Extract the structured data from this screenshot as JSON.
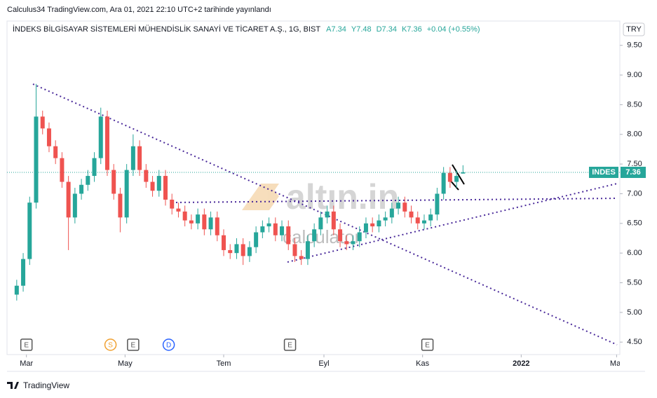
{
  "chart_data": {
    "type": "candlestick",
    "published": "Calculus34 TradingView.com, Ara 01, 2021 22:10 UTC+2 tarihinde yayınlandı",
    "title": "İNDEKS BİLGİSAYAR SİSTEMLERİ MÜHENDİSLİK SANAYİ VE TİCARET A.Ş., 1G, BIST",
    "ohlc_legend": [
      "A7.34",
      "Y7.48",
      "D7.34",
      "K7.36",
      "+0.04 (+0.55%)"
    ],
    "currency": "TRY",
    "symbol": "INDES",
    "watermark": [
      "altın.in",
      "calculator"
    ],
    "footer": "TradingView",
    "up_color": "#26a69a",
    "down_color": "#ef5350",
    "xlim": [
      -12,
      367
    ],
    "ylim": [
      4.29,
      9.91
    ],
    "xticks": [
      {
        "value": 0,
        "label": "Mar"
      },
      {
        "value": 61,
        "label": "May"
      },
      {
        "value": 122,
        "label": "Tem"
      },
      {
        "value": 184,
        "label": "Eyl"
      },
      {
        "value": 245,
        "label": "Kas"
      },
      {
        "value": 306,
        "label": "2022"
      },
      {
        "value": 365,
        "label": "Mar"
      }
    ],
    "yticks": [
      {
        "value": 4.5,
        "label": "4.50"
      },
      {
        "value": 5,
        "label": "5.00"
      },
      {
        "value": 5.5,
        "label": "5.50"
      },
      {
        "value": 6,
        "label": "6.00"
      },
      {
        "value": 6.5,
        "label": "6.50"
      },
      {
        "value": 7,
        "label": "7.00"
      },
      {
        "value": 7.5,
        "label": "7.50"
      },
      {
        "value": 8,
        "label": "8.00"
      },
      {
        "value": 8.5,
        "label": "8.50"
      },
      {
        "value": 9,
        "label": "9.00"
      },
      {
        "value": 9.5,
        "label": "9.50"
      }
    ],
    "events": [
      {
        "x": 0,
        "label": "E",
        "color": "#555555"
      },
      {
        "x": 52,
        "label": "S",
        "color": "#f0a030"
      },
      {
        "x": 66,
        "label": "E",
        "color": "#555555"
      },
      {
        "x": 88,
        "label": "D",
        "color": "#2962ff"
      },
      {
        "x": 163,
        "label": "E",
        "color": "#555555"
      },
      {
        "x": 248,
        "label": "E",
        "color": "#555555"
      }
    ],
    "x": [
      -6,
      -2,
      2,
      6,
      10,
      14,
      18,
      22,
      26,
      30,
      34,
      38,
      42,
      46,
      50,
      54,
      58,
      62,
      66,
      70,
      74,
      78,
      82,
      86,
      90,
      94,
      98,
      102,
      106,
      110,
      114,
      118,
      122,
      126,
      130,
      134,
      138,
      142,
      146,
      150,
      154,
      158,
      162,
      166,
      170,
      174,
      178,
      182,
      186,
      190,
      194,
      198,
      202,
      206,
      210,
      214,
      218,
      222,
      226,
      230,
      234,
      238,
      242,
      246,
      250,
      254,
      258,
      262,
      266,
      270
    ],
    "open": [
      5.3,
      5.45,
      5.9,
      6.85,
      8.3,
      8.1,
      7.8,
      7.6,
      7.2,
      6.6,
      7.0,
      7.15,
      7.3,
      7.6,
      8.3,
      7.4,
      7.0,
      6.6,
      7.4,
      7.8,
      7.4,
      7.2,
      7.05,
      7.3,
      6.9,
      6.75,
      6.7,
      6.55,
      6.5,
      6.65,
      6.4,
      6.6,
      6.3,
      6.05,
      6.0,
      6.15,
      5.95,
      6.1,
      6.35,
      6.45,
      6.5,
      6.3,
      6.45,
      6.15,
      5.95,
      5.9,
      6.2,
      6.4,
      6.6,
      6.7,
      6.4,
      6.2,
      6.15,
      6.2,
      6.35,
      6.5,
      6.45,
      6.55,
      6.6,
      6.75,
      6.85,
      6.7,
      6.6,
      6.5,
      6.55,
      6.65,
      7.0,
      7.35,
      7.2,
      7.34
    ],
    "high": [
      5.55,
      6.0,
      6.95,
      8.85,
      8.4,
      8.2,
      7.9,
      7.7,
      7.3,
      7.1,
      7.25,
      7.4,
      7.7,
      8.45,
      8.4,
      7.5,
      7.1,
      7.5,
      8.0,
      7.9,
      7.5,
      7.3,
      7.4,
      7.4,
      7.0,
      6.85,
      6.8,
      6.65,
      6.75,
      6.75,
      6.7,
      6.7,
      6.4,
      6.15,
      6.25,
      6.25,
      6.2,
      6.45,
      6.55,
      6.6,
      6.6,
      6.55,
      6.55,
      6.25,
      6.05,
      6.3,
      6.5,
      6.7,
      6.8,
      6.8,
      6.5,
      6.3,
      6.3,
      6.45,
      6.6,
      6.6,
      6.65,
      6.7,
      6.85,
      6.95,
      6.95,
      6.8,
      6.7,
      6.65,
      6.75,
      7.1,
      7.45,
      7.45,
      7.4,
      7.48
    ],
    "low": [
      5.2,
      5.35,
      5.8,
      6.75,
      8.0,
      7.7,
      7.5,
      7.1,
      6.05,
      6.5,
      6.9,
      7.05,
      7.2,
      7.5,
      7.3,
      6.9,
      6.35,
      6.5,
      7.3,
      7.3,
      7.1,
      6.95,
      6.95,
      6.8,
      6.65,
      6.6,
      6.45,
      6.4,
      6.4,
      6.3,
      6.3,
      6.2,
      5.95,
      5.9,
      5.9,
      5.8,
      5.85,
      6.0,
      6.25,
      6.35,
      6.2,
      6.2,
      6.05,
      5.85,
      5.8,
      5.8,
      6.1,
      6.3,
      6.5,
      6.3,
      6.1,
      6.05,
      6.05,
      6.1,
      6.25,
      6.35,
      6.35,
      6.45,
      6.5,
      6.65,
      6.6,
      6.5,
      6.4,
      6.4,
      6.45,
      6.55,
      6.9,
      7.1,
      7.1,
      7.34
    ],
    "close": [
      5.45,
      5.9,
      6.85,
      8.3,
      8.1,
      7.8,
      7.6,
      7.2,
      6.6,
      7.0,
      7.15,
      7.3,
      7.6,
      8.3,
      7.4,
      7.0,
      6.6,
      7.4,
      7.8,
      7.4,
      7.2,
      7.05,
      7.3,
      6.9,
      6.75,
      6.7,
      6.55,
      6.5,
      6.65,
      6.4,
      6.6,
      6.3,
      6.05,
      6.0,
      6.15,
      5.95,
      6.1,
      6.35,
      6.45,
      6.5,
      6.3,
      6.45,
      6.15,
      5.95,
      5.9,
      6.2,
      6.4,
      6.6,
      6.7,
      6.4,
      6.2,
      6.15,
      6.2,
      6.35,
      6.5,
      6.45,
      6.55,
      6.6,
      6.75,
      6.85,
      6.7,
      6.6,
      6.5,
      6.55,
      6.65,
      7.0,
      7.35,
      7.2,
      7.3,
      7.36
    ]
  }
}
